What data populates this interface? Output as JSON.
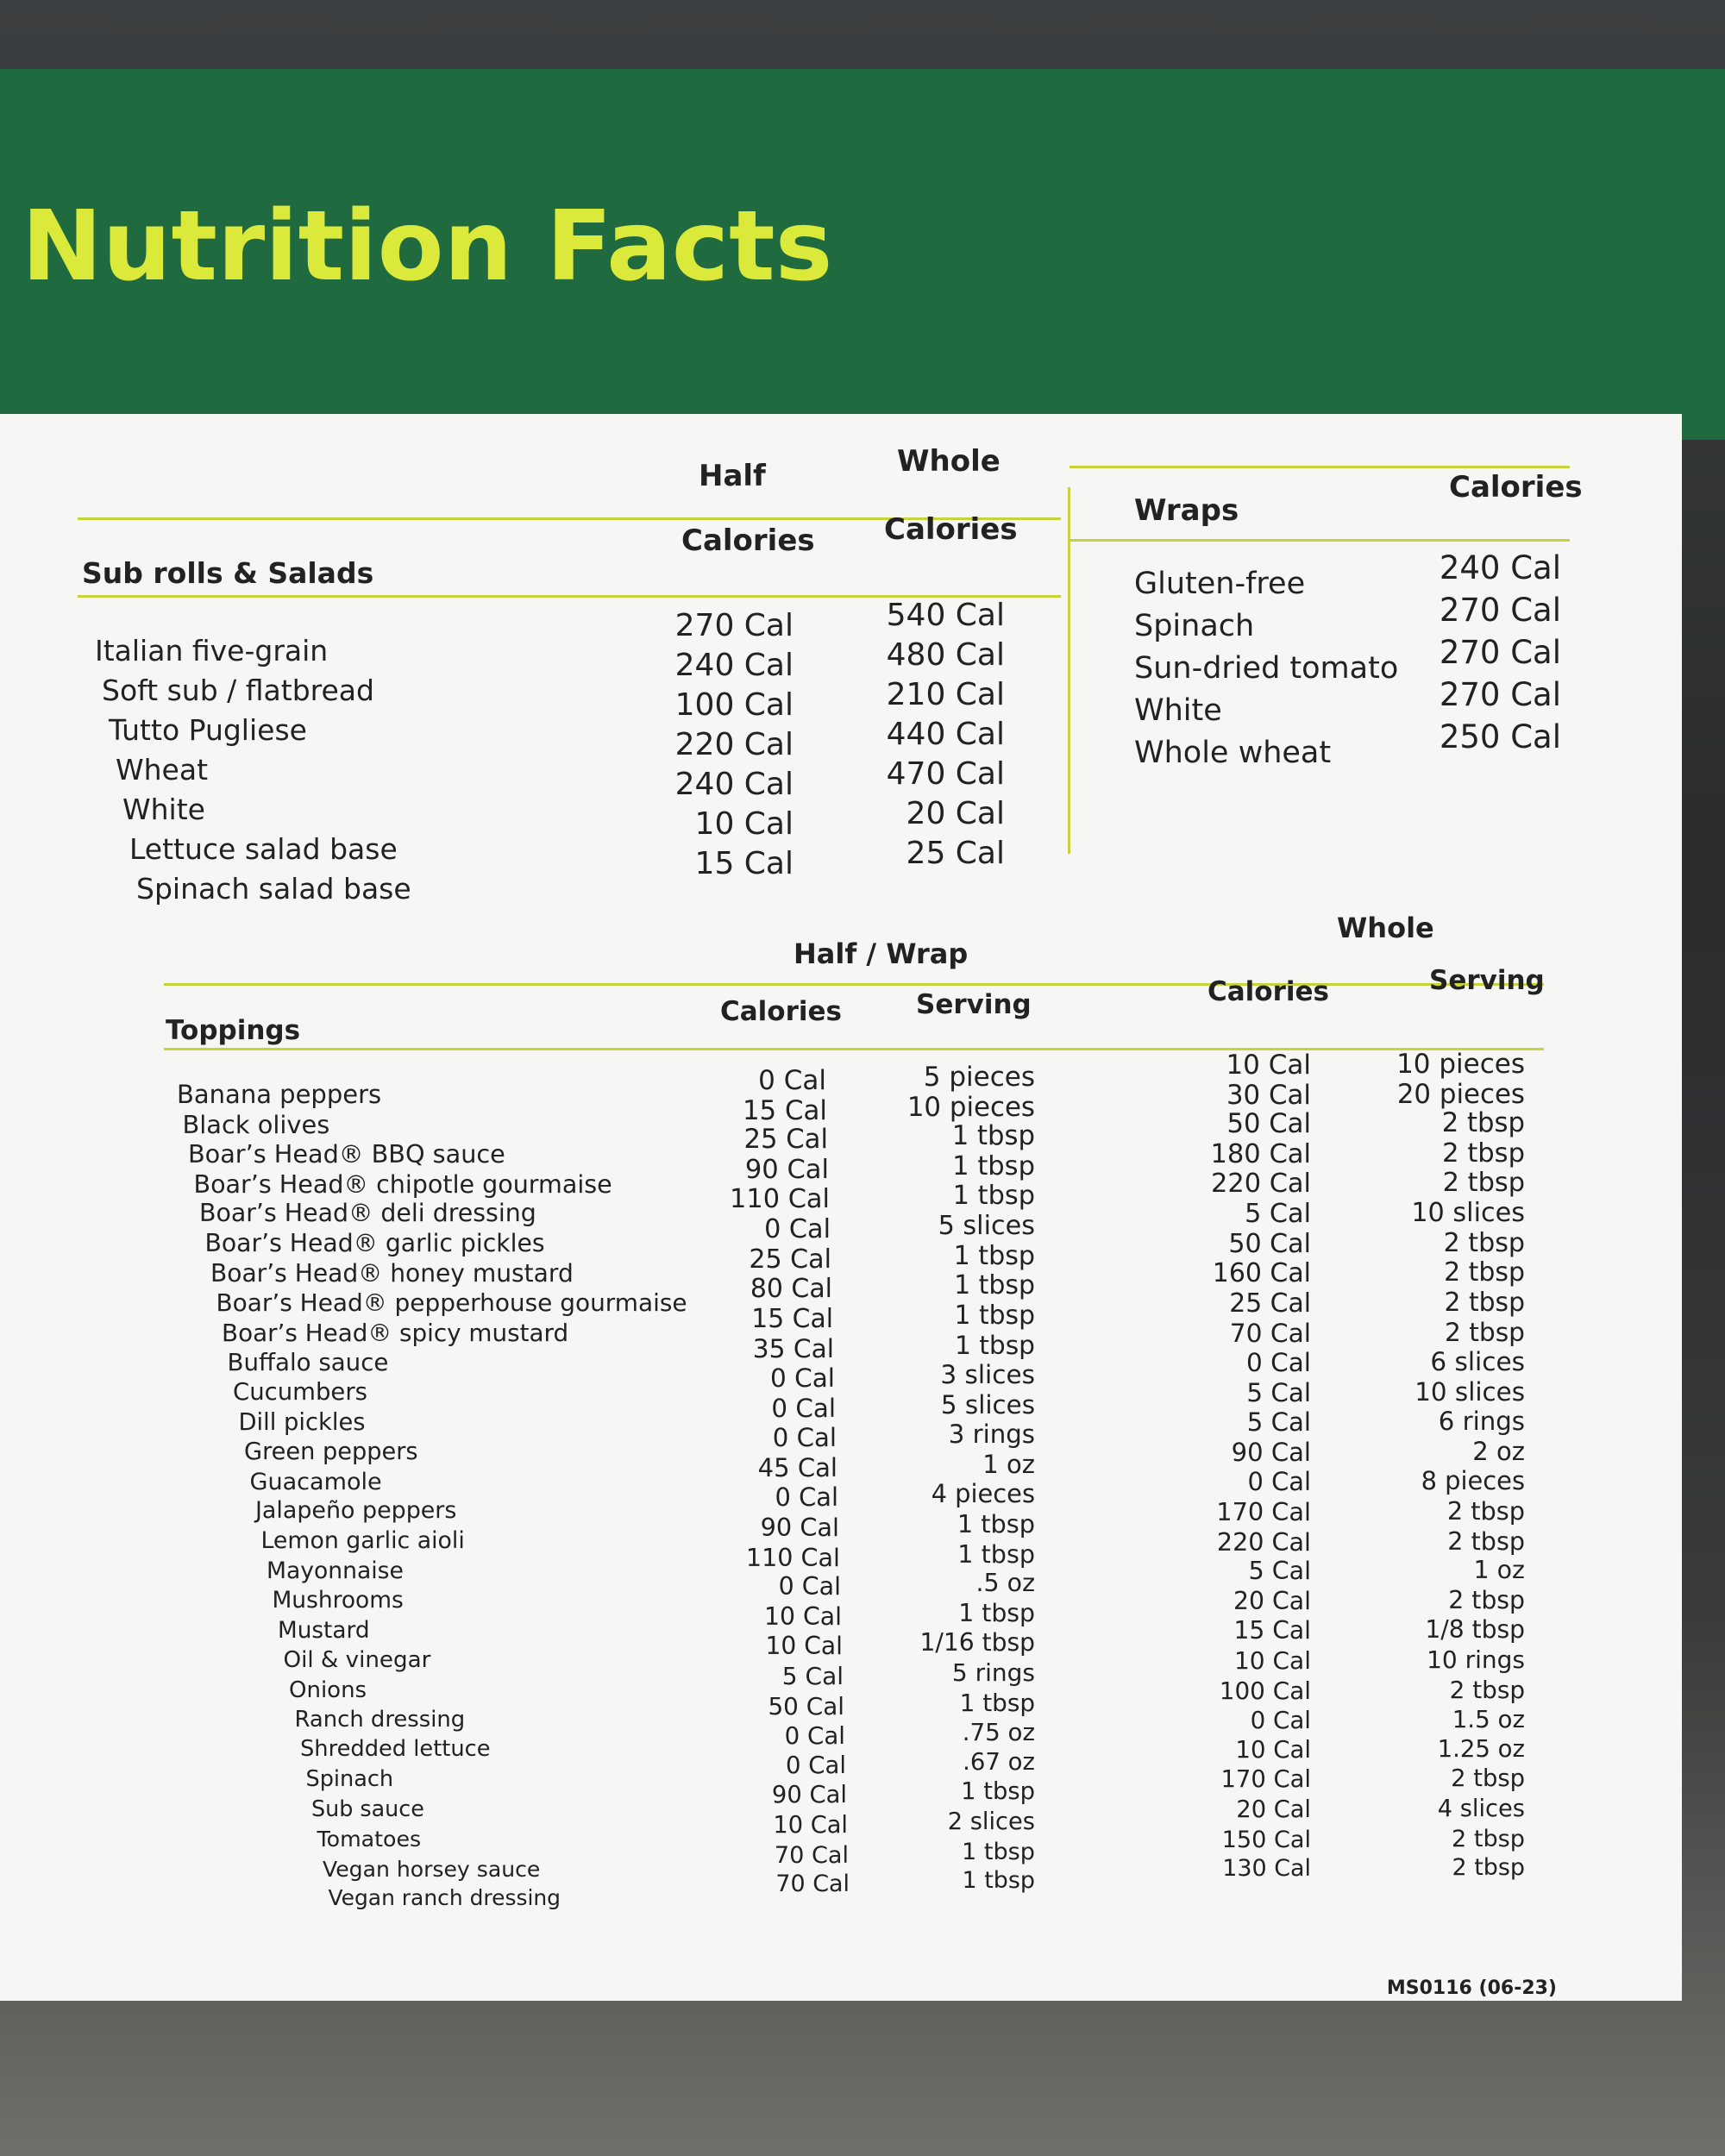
{
  "header": {
    "title": "Nutrition Facts"
  },
  "sub_rolls": {
    "group_headers": [
      "Half",
      "Whole"
    ],
    "columns": [
      "Sub rolls & Salads",
      "Calories",
      "Calories"
    ],
    "rows": [
      [
        "Italian five-grain",
        "270 Cal",
        "540 Cal"
      ],
      [
        "Soft sub / flatbread",
        "240 Cal",
        "480 Cal"
      ],
      [
        "Tutto Pugliese",
        "100 Cal",
        "210 Cal"
      ],
      [
        "Wheat",
        "220 Cal",
        "440 Cal"
      ],
      [
        "White",
        "240 Cal",
        "470 Cal"
      ],
      [
        "Lettuce salad base",
        "10 Cal",
        "20 Cal"
      ],
      [
        "Spinach salad base",
        "15 Cal",
        "25 Cal"
      ]
    ]
  },
  "wraps": {
    "columns": [
      "Wraps",
      "Calories"
    ],
    "rows": [
      [
        "Gluten-free",
        "240 Cal"
      ],
      [
        "Spinach",
        "270 Cal"
      ],
      [
        "Sun-dried tomato",
        "270 Cal"
      ],
      [
        "White",
        "270 Cal"
      ],
      [
        "Whole wheat",
        "250 Cal"
      ]
    ]
  },
  "toppings": {
    "group_headers": [
      "Half / Wrap",
      "Whole"
    ],
    "columns": [
      "Toppings",
      "Calories",
      "Serving",
      "Calories",
      "Serving"
    ],
    "rows": [
      [
        "Banana peppers",
        "0 Cal",
        "5 pieces",
        "10 Cal",
        "10 pieces"
      ],
      [
        "Black olives",
        "15 Cal",
        "10 pieces",
        "30 Cal",
        "20 pieces"
      ],
      [
        "Boar’s Head® BBQ sauce",
        "25 Cal",
        "1 tbsp",
        "50 Cal",
        "2 tbsp"
      ],
      [
        "Boar’s Head® chipotle gourmaise",
        "90 Cal",
        "1 tbsp",
        "180 Cal",
        "2 tbsp"
      ],
      [
        "Boar’s Head® deli dressing",
        "110 Cal",
        "1 tbsp",
        "220 Cal",
        "2 tbsp"
      ],
      [
        "Boar’s Head® garlic pickles",
        "0 Cal",
        "5 slices",
        "5 Cal",
        "10 slices"
      ],
      [
        "Boar’s Head® honey mustard",
        "25 Cal",
        "1 tbsp",
        "50 Cal",
        "2 tbsp"
      ],
      [
        "Boar’s Head® pepperhouse gourmaise",
        "80 Cal",
        "1 tbsp",
        "160 Cal",
        "2 tbsp"
      ],
      [
        "Boar’s Head® spicy mustard",
        "15 Cal",
        "1 tbsp",
        "25 Cal",
        "2 tbsp"
      ],
      [
        "Buffalo sauce",
        "35 Cal",
        "1 tbsp",
        "70 Cal",
        "2 tbsp"
      ],
      [
        "Cucumbers",
        "0 Cal",
        "3 slices",
        "0 Cal",
        "6 slices"
      ],
      [
        "Dill pickles",
        "0 Cal",
        "5 slices",
        "5 Cal",
        "10 slices"
      ],
      [
        "Green peppers",
        "0 Cal",
        "3 rings",
        "5 Cal",
        "6 rings"
      ],
      [
        "Guacamole",
        "45 Cal",
        "1 oz",
        "90 Cal",
        "2 oz"
      ],
      [
        "Jalapeño peppers",
        "0 Cal",
        "4 pieces",
        "0 Cal",
        "8 pieces"
      ],
      [
        "Lemon garlic aioli",
        "90 Cal",
        "1 tbsp",
        "170 Cal",
        "2 tbsp"
      ],
      [
        "Mayonnaise",
        "110 Cal",
        "1 tbsp",
        "220 Cal",
        "2 tbsp"
      ],
      [
        "Mushrooms",
        "0 Cal",
        ".5 oz",
        "5 Cal",
        "1 oz"
      ],
      [
        "Mustard",
        "10 Cal",
        "1 tbsp",
        "20 Cal",
        "2 tbsp"
      ],
      [
        "Oil & vinegar",
        "10 Cal",
        "1/16 tbsp",
        "15 Cal",
        "1/8 tbsp"
      ],
      [
        "Onions",
        "5 Cal",
        "5 rings",
        "10 Cal",
        "10 rings"
      ],
      [
        "Ranch dressing",
        "50 Cal",
        "1 tbsp",
        "100 Cal",
        "2 tbsp"
      ],
      [
        "Shredded lettuce",
        "0 Cal",
        ".75 oz",
        "0 Cal",
        "1.5 oz"
      ],
      [
        "Spinach",
        "0 Cal",
        ".67 oz",
        "10 Cal",
        "1.25 oz"
      ],
      [
        "Sub sauce",
        "90 Cal",
        "1 tbsp",
        "170 Cal",
        "2 tbsp"
      ],
      [
        "Tomatoes",
        "10 Cal",
        "2 slices",
        "20 Cal",
        "4 slices"
      ],
      [
        "Vegan horsey sauce",
        "70 Cal",
        "1 tbsp",
        "150 Cal",
        "2 tbsp"
      ],
      [
        "Vegan ranch dressing",
        "70 Cal",
        "1 tbsp",
        "130 Cal",
        "2 tbsp"
      ]
    ]
  },
  "footer": {
    "code": "MS0116 (06-23)"
  }
}
